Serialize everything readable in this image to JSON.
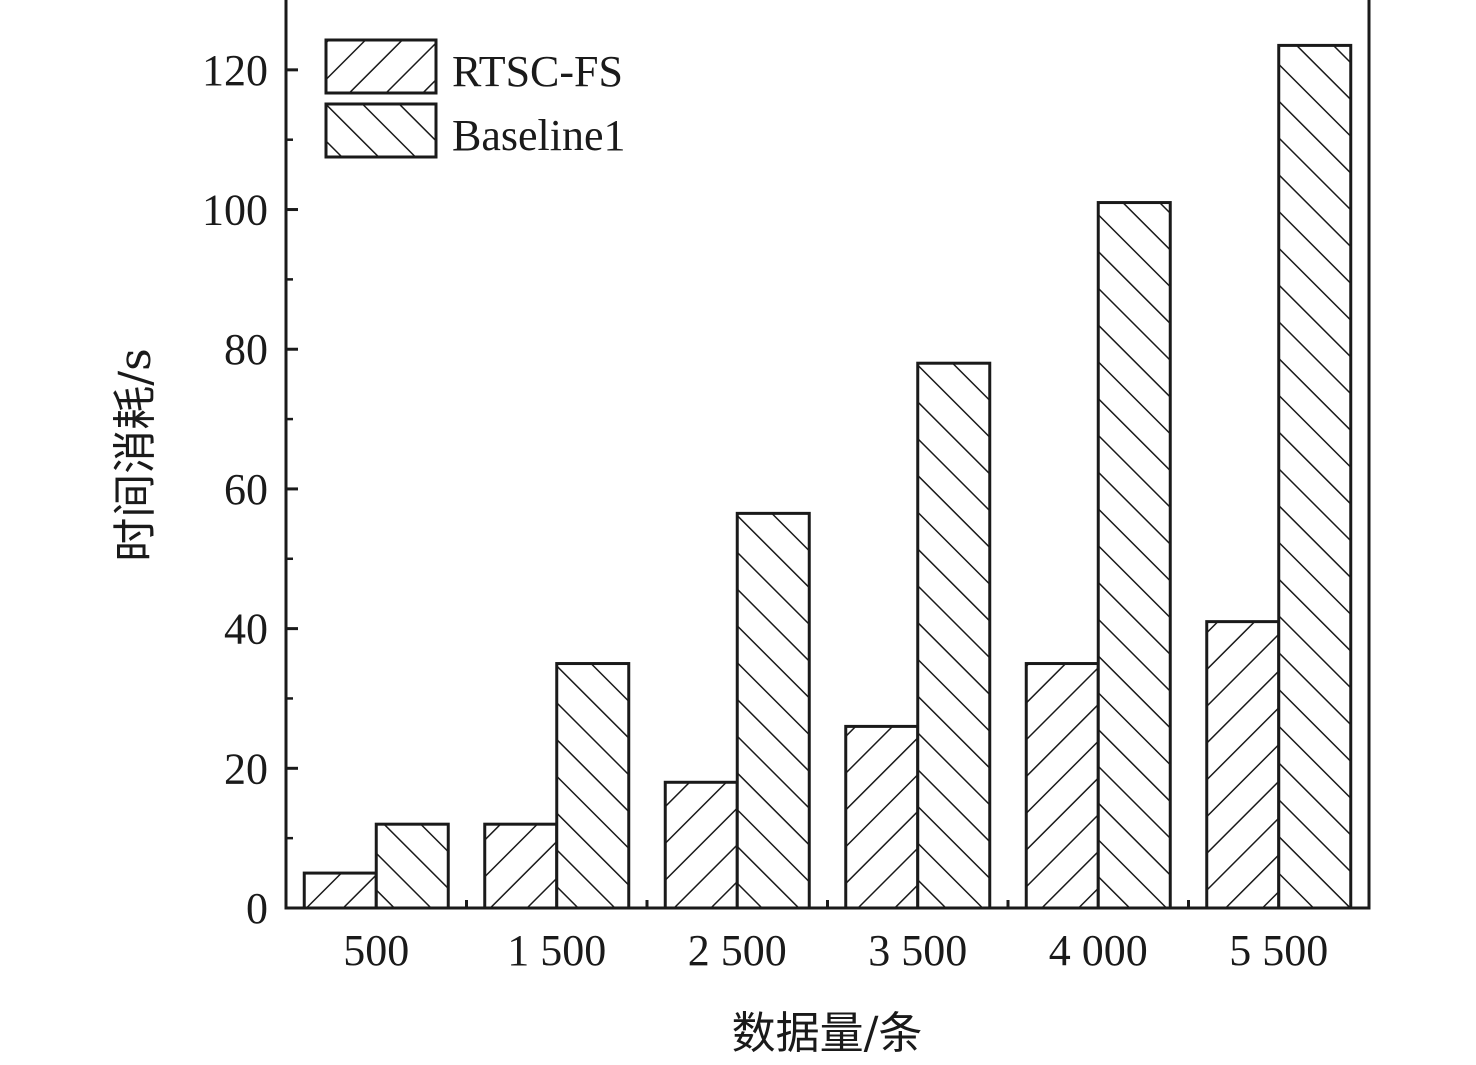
{
  "chart_data": {
    "type": "bar",
    "xlabel": "数据量/条",
    "ylabel": "时间消耗/s",
    "categories": [
      "500",
      "1 500",
      "2 500",
      "3 500",
      "4 000",
      "5 500"
    ],
    "series": [
      {
        "name": "RTSC-FS",
        "values": [
          5,
          12,
          18,
          26,
          35,
          41
        ],
        "pattern": "forward-hatch"
      },
      {
        "name": "Baseline1",
        "values": [
          12,
          35,
          56.5,
          78,
          101,
          123.5
        ],
        "pattern": "back-hatch"
      }
    ],
    "ylim": [
      0,
      130
    ],
    "yticks": [
      0,
      20,
      40,
      60,
      80,
      100,
      120
    ],
    "legend_position": "top-left",
    "grid": false,
    "colors": {
      "stroke": "#1a1a1a",
      "fill": "#ffffff"
    }
  }
}
